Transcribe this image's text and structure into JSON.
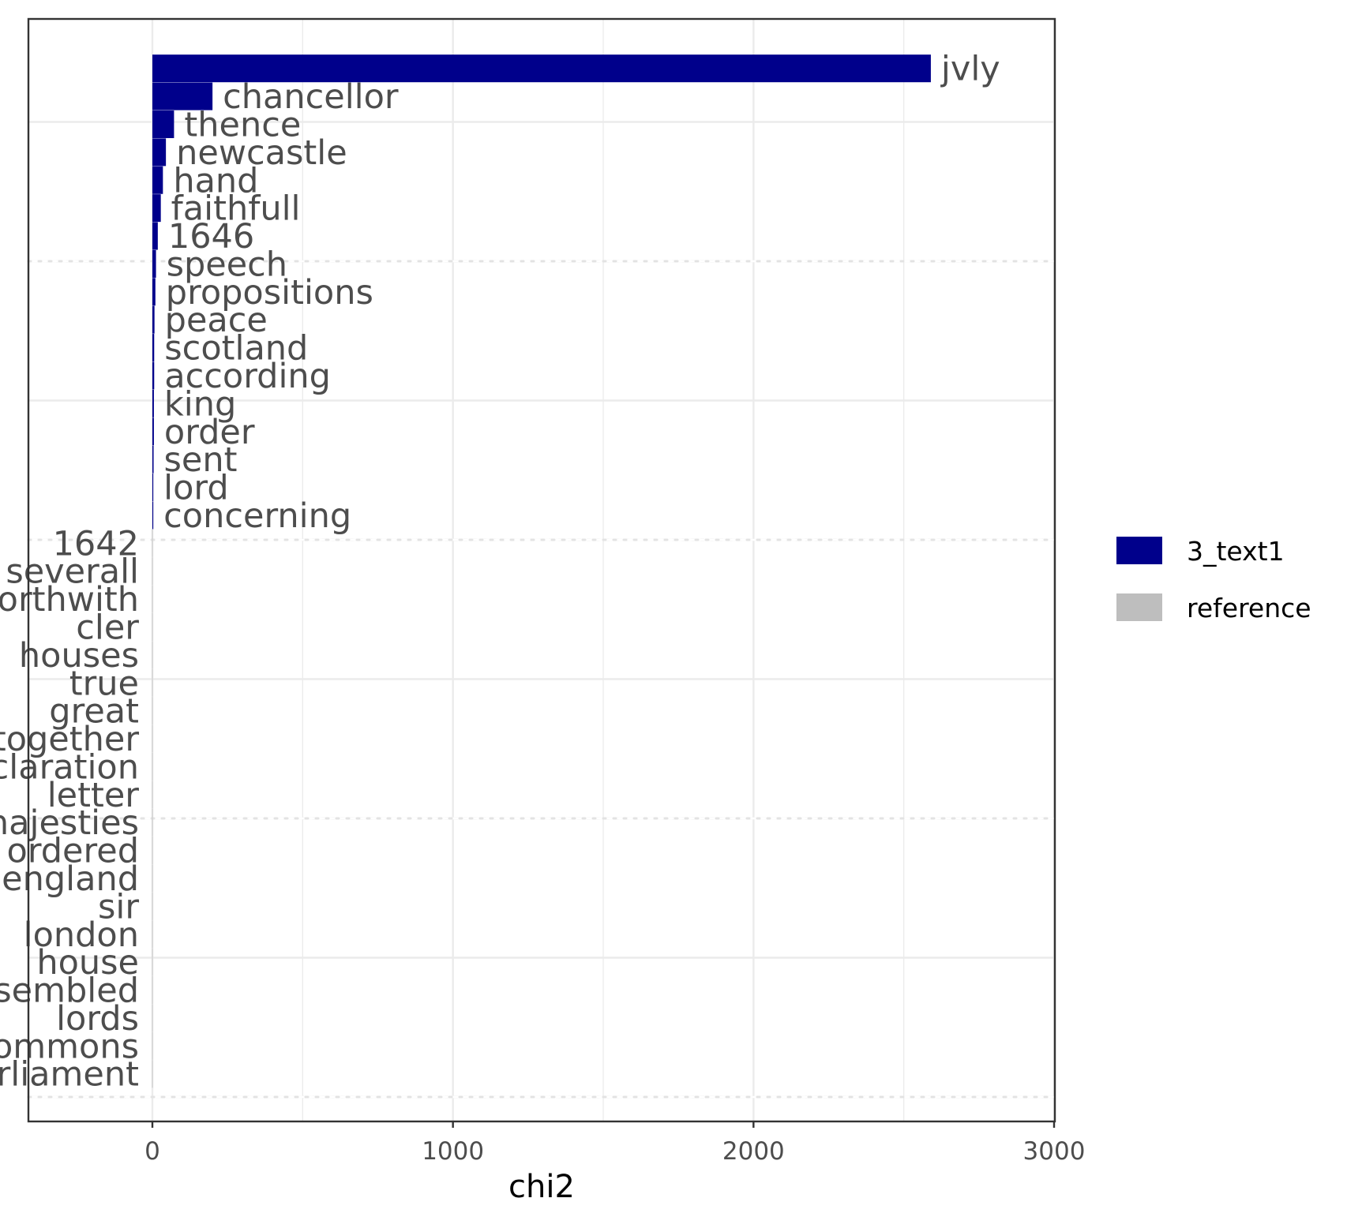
{
  "chart_data": {
    "type": "bar",
    "orientation": "horizontal",
    "xlabel": "chi2",
    "ylabel": "",
    "xlim": [
      -410,
      3000
    ],
    "x_ticks": [
      0,
      1000,
      2000,
      3000
    ],
    "grid": true,
    "legend_position": "right",
    "series": [
      {
        "name": "3_text1",
        "color": "#00008b"
      },
      {
        "name": "reference",
        "color": "#bebebe"
      }
    ],
    "bars": [
      {
        "label": "jvly",
        "value": 2590,
        "series": "3_text1"
      },
      {
        "label": "chancellor",
        "value": 200,
        "series": "3_text1"
      },
      {
        "label": "thence",
        "value": 72,
        "series": "3_text1"
      },
      {
        "label": "newcastle",
        "value": 45,
        "series": "3_text1"
      },
      {
        "label": "hand",
        "value": 35,
        "series": "3_text1"
      },
      {
        "label": "faithfull",
        "value": 28,
        "series": "3_text1"
      },
      {
        "label": "1646",
        "value": 18,
        "series": "3_text1"
      },
      {
        "label": "speech",
        "value": 12,
        "series": "3_text1"
      },
      {
        "label": "propositions",
        "value": 10,
        "series": "3_text1"
      },
      {
        "label": "peace",
        "value": 7,
        "series": "3_text1"
      },
      {
        "label": "scotland",
        "value": 6,
        "series": "3_text1"
      },
      {
        "label": "according",
        "value": 6,
        "series": "3_text1"
      },
      {
        "label": "king",
        "value": 5,
        "series": "3_text1"
      },
      {
        "label": "order",
        "value": 5,
        "series": "3_text1"
      },
      {
        "label": "sent",
        "value": 4,
        "series": "3_text1"
      },
      {
        "label": "lord",
        "value": 3,
        "series": "3_text1"
      },
      {
        "label": "concerning",
        "value": 3,
        "series": "3_text1"
      },
      {
        "label": "1642",
        "value": -1,
        "series": "reference"
      },
      {
        "label": "severall",
        "value": -1,
        "series": "reference"
      },
      {
        "label": "forthwith",
        "value": -1,
        "series": "reference"
      },
      {
        "label": "cler",
        "value": -1,
        "series": "reference"
      },
      {
        "label": "houses",
        "value": -1,
        "series": "reference"
      },
      {
        "label": "true",
        "value": -1,
        "series": "reference"
      },
      {
        "label": "great",
        "value": -1,
        "series": "reference"
      },
      {
        "label": "together",
        "value": -1,
        "series": "reference"
      },
      {
        "label": "declaration",
        "value": -1,
        "series": "reference"
      },
      {
        "label": "letter",
        "value": -1,
        "series": "reference"
      },
      {
        "label": "majesties",
        "value": -1,
        "series": "reference"
      },
      {
        "label": "ordered",
        "value": -1,
        "series": "reference"
      },
      {
        "label": "england",
        "value": -1,
        "series": "reference"
      },
      {
        "label": "sir",
        "value": -1,
        "series": "reference"
      },
      {
        "label": "london",
        "value": -1,
        "series": "reference"
      },
      {
        "label": "house",
        "value": -1,
        "series": "reference"
      },
      {
        "label": "assembled",
        "value": -1,
        "series": "reference"
      },
      {
        "label": "lords",
        "value": -1,
        "series": "reference"
      },
      {
        "label": "commons",
        "value": -1,
        "series": "reference"
      },
      {
        "label": "parliament",
        "value": -1,
        "series": "reference"
      }
    ]
  }
}
